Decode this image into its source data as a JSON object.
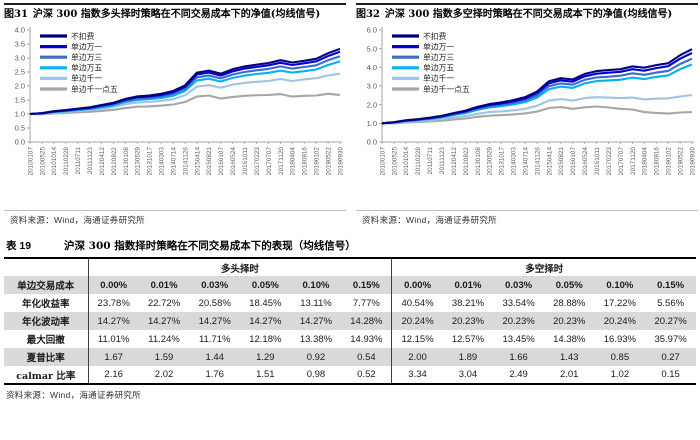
{
  "figures": [
    {
      "title_num": "图31",
      "title_text": "沪深 300 指数多头择时策略在不同交易成本下的净值(均线信号)",
      "source": "资料来源：Wind，海通证券研究所"
    },
    {
      "title_num": "图32",
      "title_text": "沪深 300 指数多空择时策略在不同交易成本下的净值(均线信号)",
      "source": "资料来源：Wind，海通证券研究所"
    }
  ],
  "chart_data": [
    {
      "type": "line",
      "title": "图31 沪深 300 指数多头择时策略在不同交易成本下的净值(均线信号)",
      "legend_position": "top-left",
      "grid": false,
      "ylim": [
        0.0,
        4.0
      ],
      "yticks": [
        "4.0",
        "3.5",
        "3.0",
        "2.5",
        "2.0",
        "1.5",
        "1.0",
        "0.5",
        "0.0"
      ],
      "x": [
        "20100107",
        "20100525",
        "20101014",
        "20110228",
        "20110711",
        "20111123",
        "20120412",
        "20120822",
        "20130108",
        "20130529",
        "20131017",
        "20140303",
        "20140714",
        "20141126",
        "20150414",
        "20150821",
        "20160107",
        "20160524",
        "20161011",
        "20170223",
        "20170707",
        "20171120",
        "20180404",
        "20180816",
        "20190102",
        "20190522",
        "20190930"
      ],
      "series": [
        {
          "name": "不扣费",
          "color": "#000080",
          "values": [
            1.0,
            1.03,
            1.1,
            1.14,
            1.19,
            1.24,
            1.32,
            1.4,
            1.54,
            1.63,
            1.66,
            1.72,
            1.82,
            2.02,
            2.48,
            2.55,
            2.44,
            2.6,
            2.7,
            2.76,
            2.82,
            2.92,
            2.84,
            2.9,
            2.97,
            3.17,
            3.33
          ]
        },
        {
          "name": "单边万一",
          "color": "#0000d6",
          "values": [
            1.0,
            1.03,
            1.09,
            1.13,
            1.18,
            1.22,
            1.3,
            1.38,
            1.51,
            1.6,
            1.63,
            1.68,
            1.78,
            1.97,
            2.41,
            2.48,
            2.37,
            2.52,
            2.62,
            2.68,
            2.74,
            2.83,
            2.75,
            2.81,
            2.88,
            3.07,
            3.22
          ]
        },
        {
          "name": "单边万三",
          "color": "#3a6bc9",
          "values": [
            1.0,
            1.02,
            1.08,
            1.12,
            1.16,
            1.2,
            1.27,
            1.34,
            1.47,
            1.55,
            1.58,
            1.63,
            1.72,
            1.9,
            2.31,
            2.37,
            2.27,
            2.41,
            2.5,
            2.56,
            2.61,
            2.7,
            2.62,
            2.68,
            2.74,
            2.92,
            3.06
          ]
        },
        {
          "name": "单边万五",
          "color": "#00b0f0",
          "values": [
            1.0,
            1.02,
            1.07,
            1.1,
            1.14,
            1.18,
            1.24,
            1.31,
            1.43,
            1.5,
            1.53,
            1.57,
            1.65,
            1.82,
            2.2,
            2.26,
            2.16,
            2.29,
            2.37,
            2.43,
            2.47,
            2.55,
            2.48,
            2.53,
            2.59,
            2.75,
            2.88
          ]
        },
        {
          "name": "单边千一",
          "color": "#9dc3e6",
          "values": [
            1.0,
            1.01,
            1.05,
            1.08,
            1.11,
            1.14,
            1.19,
            1.25,
            1.35,
            1.41,
            1.43,
            1.47,
            1.53,
            1.67,
            1.98,
            2.03,
            1.94,
            2.05,
            2.11,
            2.15,
            2.18,
            2.25,
            2.18,
            2.24,
            2.28,
            2.38,
            2.44
          ]
        },
        {
          "name": "单边千一点五",
          "color": "#a6a6a6",
          "values": [
            1.0,
            0.99,
            1.02,
            1.04,
            1.06,
            1.08,
            1.11,
            1.15,
            1.21,
            1.26,
            1.27,
            1.3,
            1.34,
            1.43,
            1.62,
            1.66,
            1.55,
            1.61,
            1.65,
            1.67,
            1.68,
            1.71,
            1.62,
            1.65,
            1.66,
            1.72,
            1.68
          ]
        }
      ]
    },
    {
      "type": "line",
      "title": "图32 沪深 300 指数多空择时策略在不同交易成本下的净值(均线信号)",
      "legend_position": "top-left",
      "grid": false,
      "ylim": [
        0.0,
        6.0
      ],
      "yticks": [
        "6.0",
        "5.0",
        "4.0",
        "3.0",
        "2.0",
        "1.0",
        "0.0"
      ],
      "x": [
        "20100107",
        "20100525",
        "20101014",
        "20110228",
        "20110711",
        "20111123",
        "20120412",
        "20120822",
        "20130108",
        "20130529",
        "20131017",
        "20140303",
        "20140714",
        "20141126",
        "20150414",
        "20150821",
        "20160107",
        "20160524",
        "20161011",
        "20170223",
        "20170707",
        "20171120",
        "20180404",
        "20180816",
        "20190102",
        "20190522",
        "20190930"
      ],
      "series": [
        {
          "name": "不扣费",
          "color": "#000080",
          "values": [
            1.0,
            1.06,
            1.16,
            1.22,
            1.3,
            1.4,
            1.55,
            1.68,
            1.88,
            2.03,
            2.12,
            2.24,
            2.4,
            2.7,
            3.25,
            3.42,
            3.35,
            3.65,
            3.8,
            3.85,
            3.9,
            4.05,
            3.98,
            4.12,
            4.22,
            4.65,
            4.97
          ]
        },
        {
          "name": "单边万一",
          "color": "#0000d6",
          "values": [
            1.0,
            1.05,
            1.15,
            1.21,
            1.28,
            1.38,
            1.52,
            1.65,
            1.84,
            1.99,
            2.07,
            2.18,
            2.33,
            2.62,
            3.14,
            3.3,
            3.23,
            3.52,
            3.66,
            3.71,
            3.76,
            3.9,
            3.82,
            3.96,
            4.06,
            4.46,
            4.77
          ]
        },
        {
          "name": "单边万三",
          "color": "#3a6bc9",
          "values": [
            1.0,
            1.05,
            1.13,
            1.19,
            1.26,
            1.35,
            1.48,
            1.6,
            1.78,
            1.92,
            2.0,
            2.1,
            2.24,
            2.5,
            2.99,
            3.14,
            3.07,
            3.33,
            3.46,
            3.5,
            3.55,
            3.68,
            3.6,
            3.72,
            3.81,
            4.18,
            4.46
          ]
        },
        {
          "name": "单边万五",
          "color": "#00b0f0",
          "values": [
            1.0,
            1.04,
            1.12,
            1.17,
            1.23,
            1.32,
            1.44,
            1.55,
            1.72,
            1.85,
            1.92,
            2.01,
            2.14,
            2.38,
            2.83,
            2.97,
            2.9,
            3.14,
            3.26,
            3.3,
            3.34,
            3.45,
            3.37,
            3.49,
            3.57,
            3.9,
            4.15
          ]
        },
        {
          "name": "单边千一",
          "color": "#9dc3e6",
          "values": [
            1.0,
            1.02,
            1.08,
            1.12,
            1.16,
            1.22,
            1.31,
            1.39,
            1.51,
            1.6,
            1.64,
            1.7,
            1.78,
            1.94,
            2.22,
            2.3,
            2.22,
            2.35,
            2.4,
            2.38,
            2.35,
            2.38,
            2.28,
            2.32,
            2.34,
            2.44,
            2.52
          ]
        },
        {
          "name": "单边千一点五",
          "color": "#a6a6a6",
          "values": [
            1.0,
            1.0,
            1.05,
            1.07,
            1.1,
            1.14,
            1.2,
            1.26,
            1.35,
            1.41,
            1.44,
            1.48,
            1.53,
            1.63,
            1.82,
            1.87,
            1.78,
            1.86,
            1.9,
            1.85,
            1.78,
            1.74,
            1.6,
            1.56,
            1.52,
            1.58,
            1.6
          ]
        }
      ]
    }
  ],
  "table": {
    "label": "表 19",
    "title": "沪深 300 指数择时策略在不同交易成本下的表现（均线信号）",
    "group_headers": [
      "多头择时",
      "多空择时"
    ],
    "cost_row_label": "单边交易成本",
    "cost_headers": [
      "0.00%",
      "0.01%",
      "0.03%",
      "0.05%",
      "0.10%",
      "0.15%",
      "0.00%",
      "0.01%",
      "0.03%",
      "0.05%",
      "0.10%",
      "0.15%"
    ],
    "rows": [
      {
        "label": "年化收益率",
        "values": [
          "23.78%",
          "22.72%",
          "20.58%",
          "18.45%",
          "13.11%",
          "7.77%",
          "40.54%",
          "38.21%",
          "33.54%",
          "28.88%",
          "17.22%",
          "5.56%"
        ]
      },
      {
        "label": "年化波动率",
        "values": [
          "14.27%",
          "14.27%",
          "14.27%",
          "14.27%",
          "14.27%",
          "14.28%",
          "20.24%",
          "20.23%",
          "20.23%",
          "20.23%",
          "20.24%",
          "20.27%"
        ]
      },
      {
        "label": "最大回撤",
        "values": [
          "11.01%",
          "11.24%",
          "11.71%",
          "12.18%",
          "13.38%",
          "14.93%",
          "12.15%",
          "12.57%",
          "13.45%",
          "14.38%",
          "16.93%",
          "35.97%"
        ]
      },
      {
        "label": "夏普比率",
        "values": [
          "1.67",
          "1.59",
          "1.44",
          "1.29",
          "0.92",
          "0.54",
          "2.00",
          "1.89",
          "1.66",
          "1.43",
          "0.85",
          "0.27"
        ]
      },
      {
        "label": "calmar 比率",
        "values": [
          "2.16",
          "2.02",
          "1.76",
          "1.51",
          "0.98",
          "0.52",
          "3.34",
          "3.04",
          "2.49",
          "2.01",
          "1.02",
          "0.15"
        ]
      }
    ],
    "source": "资料来源：Wind，海通证券研究所"
  }
}
